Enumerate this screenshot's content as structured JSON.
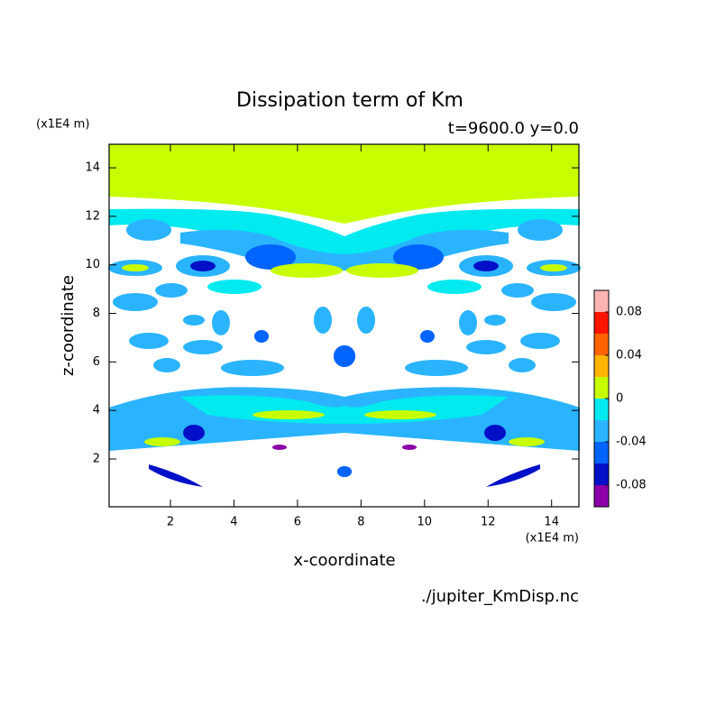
{
  "chart_data": {
    "type": "contour",
    "title": "Dissipation term of Km",
    "subtitle": "t=9600.0 y=0.0",
    "x_label": "x-coordinate",
    "y_label": "z-coordinate",
    "x_unit": "(x1E4 m)",
    "y_unit": "(x1E4 m)",
    "source": "./jupiter_KmDisp.nc",
    "xlim": [
      0.07,
      14.86
    ],
    "ylim": [
      0.03,
      14.97
    ],
    "xticks": [
      2,
      4,
      6,
      8,
      10,
      12,
      14
    ],
    "yticks": [
      2,
      4,
      6,
      8,
      10,
      12,
      14
    ],
    "colorbar": {
      "levels": [
        -0.1,
        -0.08,
        -0.06,
        -0.04,
        -0.02,
        0,
        0.02,
        0.04,
        0.06,
        0.08,
        0.1
      ],
      "colors": [
        "#8c00a8",
        "#0010c8",
        "#0064ff",
        "#2ab4ff",
        "#00eaf0",
        "#c8ff00",
        "#ffb400",
        "#ff6400",
        "#ff1400",
        "#ffb4b4"
      ],
      "ticks": [
        -0.08,
        -0.04,
        0,
        0.04,
        0.08
      ]
    }
  }
}
